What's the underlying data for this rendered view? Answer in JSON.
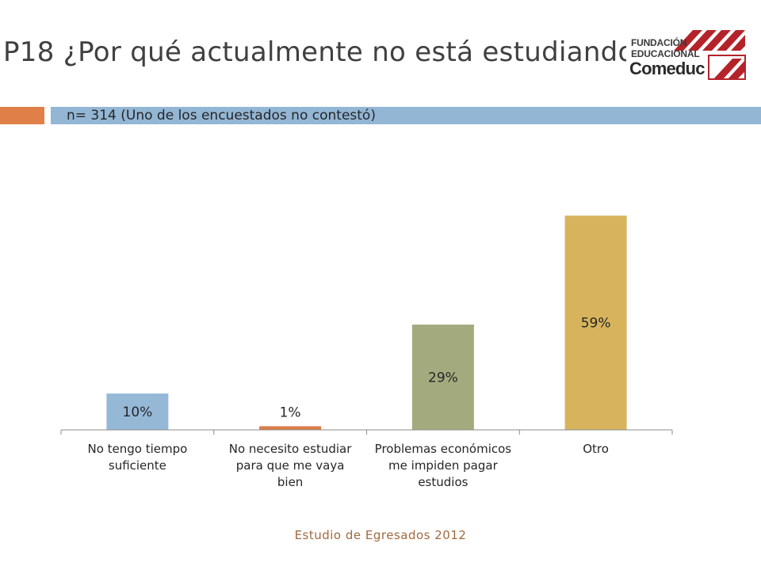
{
  "header": {
    "title": "P18 ¿Por qué actualmente no está estudiando?",
    "subtitle": "n= 314 (Uno de los encuestados no contestó)"
  },
  "logo": {
    "line1": "FUNDACIÓN",
    "line2": "EDUCACIONAL",
    "line3": "Comeduc",
    "color": "#b5232a"
  },
  "colors": {
    "accent_orange": "#e07f47",
    "accent_blue": "#93b6d5"
  },
  "chart_data": {
    "type": "bar",
    "title": "",
    "xlabel": "",
    "ylabel": "",
    "ylim": [
      0,
      70
    ],
    "grid": false,
    "legend": "none",
    "categories": [
      [
        "No tengo tiempo",
        "suficiente"
      ],
      [
        "No necesito estudiar",
        "para que me vaya",
        "bien"
      ],
      [
        "Problemas económicos",
        "me impiden pagar",
        "estudios"
      ],
      [
        "Otro"
      ]
    ],
    "values": [
      10,
      1,
      29,
      59
    ],
    "data_labels": [
      "10%",
      "1%",
      "29%",
      "59%"
    ],
    "colors": [
      "#95b8d7",
      "#dc7e47",
      "#a3ab7e",
      "#d7b45c"
    ]
  },
  "footer": {
    "text": "Estudio de Egresados 2012"
  }
}
